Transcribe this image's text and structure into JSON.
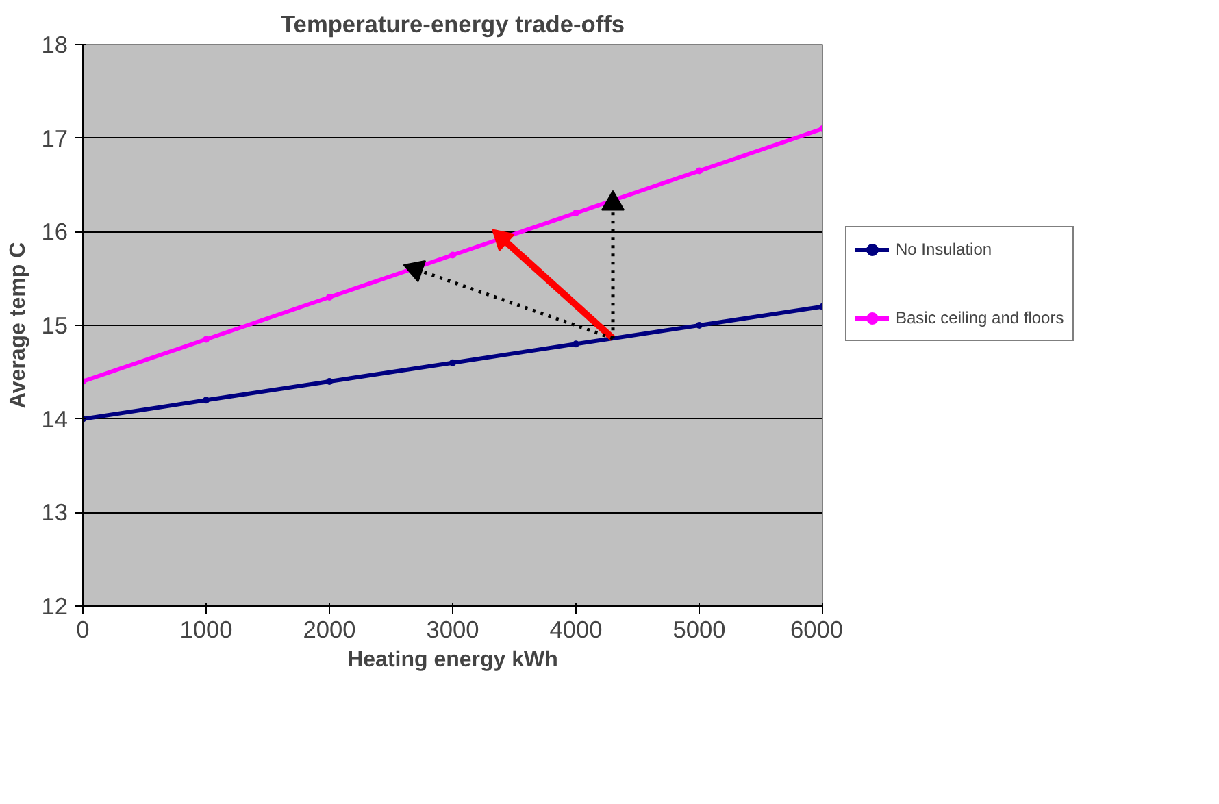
{
  "chart_data": {
    "type": "line",
    "title": "Temperature-energy trade-offs",
    "xlabel": "Heating energy kWh",
    "ylabel": "Average temp C",
    "x": [
      0,
      1000,
      2000,
      3000,
      4000,
      5000,
      6000
    ],
    "series": [
      {
        "name": "No Insulation",
        "color": "#000080",
        "values": [
          14.0,
          14.2,
          14.4,
          14.6,
          14.8,
          15.0,
          15.2
        ]
      },
      {
        "name": "Basic ceiling and floors",
        "color": "#ff00ff",
        "values": [
          14.4,
          14.85,
          15.3,
          15.75,
          16.2,
          16.65,
          17.1
        ]
      },
      {
        "type": "line",
        "color": "#ff0000",
        "x": [
          4300,
          3400
        ],
        "values": [
          14.86,
          15.93
        ],
        "marker": "triangle",
        "line_style": "solid"
      },
      {
        "type": "line",
        "color": "#000000",
        "x": [
          4300,
          2700
        ],
        "values": [
          14.86,
          15.6
        ],
        "marker": "triangle",
        "line_style": "dotted"
      },
      {
        "type": "line",
        "color": "#000000",
        "x": [
          4300,
          4300
        ],
        "values": [
          14.86,
          16.3
        ],
        "marker": "triangle",
        "line_style": "dotted"
      }
    ],
    "xlim": [
      0,
      6000
    ],
    "xticks": [
      0,
      1000,
      2000,
      3000,
      4000,
      5000,
      6000
    ],
    "ylim": [
      12,
      18
    ],
    "yticks": [
      12,
      13,
      14,
      15,
      16,
      17,
      18
    ],
    "grid": "y",
    "legend": "right",
    "marker": "circle",
    "line_style": "solid"
  }
}
